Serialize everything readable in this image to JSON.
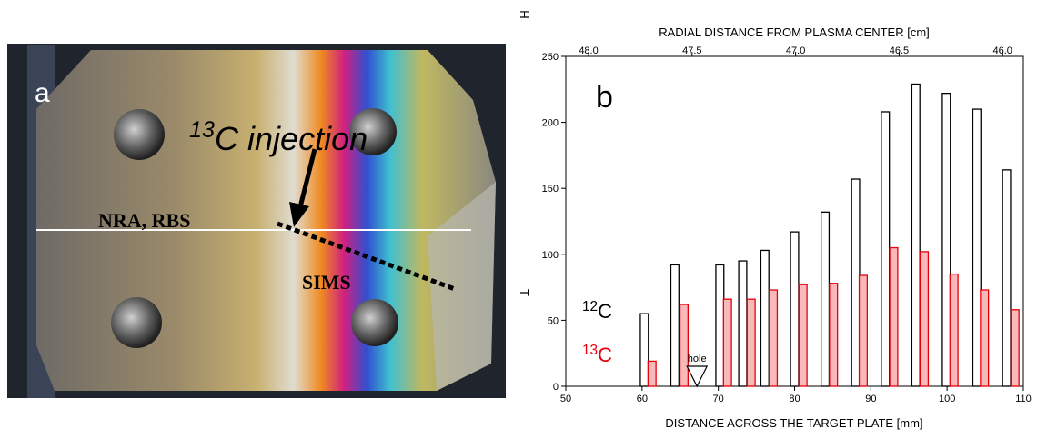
{
  "photo_labels": {
    "panel": "a",
    "injection": "13C injection",
    "nra": "NRA, RBS",
    "sims": "SIMS"
  },
  "chart_data": {
    "type": "bar",
    "panel_label": "b",
    "x2_label": "RADIAL DISTANCE FROM PLASMA CENTER [cm]",
    "x_label": "DISTANCE ACROSS THE TARGET PLATE [mm]",
    "y_label": "T",
    "corner_mark": "H",
    "xlim": [
      50,
      110
    ],
    "xticks": [
      50,
      60,
      70,
      80,
      90,
      100,
      110
    ],
    "ylim": [
      0,
      250
    ],
    "yticks": [
      0,
      50,
      100,
      150,
      200,
      250
    ],
    "x2lim": [
      48.11,
      45.9
    ],
    "x2ticks": [
      {
        "value": 48,
        "label": "48.0"
      },
      {
        "value": 47.5,
        "label": "47.5"
      },
      {
        "value": 47,
        "label": "47.0"
      },
      {
        "value": 46.5,
        "label": "46.5"
      },
      {
        "value": 46,
        "label": "46.0"
      }
    ],
    "series": [
      {
        "name": "12C",
        "color": "#000000",
        "fill": "#ffffff",
        "x": [
          60.3,
          64.3,
          70.2,
          73.2,
          76.1,
          80.0,
          84.0,
          88.0,
          91.9,
          95.9,
          99.9,
          103.9,
          107.8
        ],
        "values": [
          55,
          92,
          92,
          95,
          103,
          117,
          132,
          157,
          208,
          229,
          222,
          210,
          164
        ]
      },
      {
        "name": "13C",
        "color": "#e8000b",
        "fill": "#f7b9b9",
        "x": [
          61.3,
          65.5,
          71.2,
          74.3,
          77.2,
          81.1,
          85.1,
          89.0,
          93.0,
          97.0,
          100.9,
          104.9,
          108.9
        ],
        "values": [
          19,
          62,
          66,
          66,
          73,
          77,
          78,
          84,
          105,
          102,
          85,
          73,
          58
        ]
      }
    ],
    "annotation": {
      "text": "hole",
      "x": 67.2
    }
  }
}
